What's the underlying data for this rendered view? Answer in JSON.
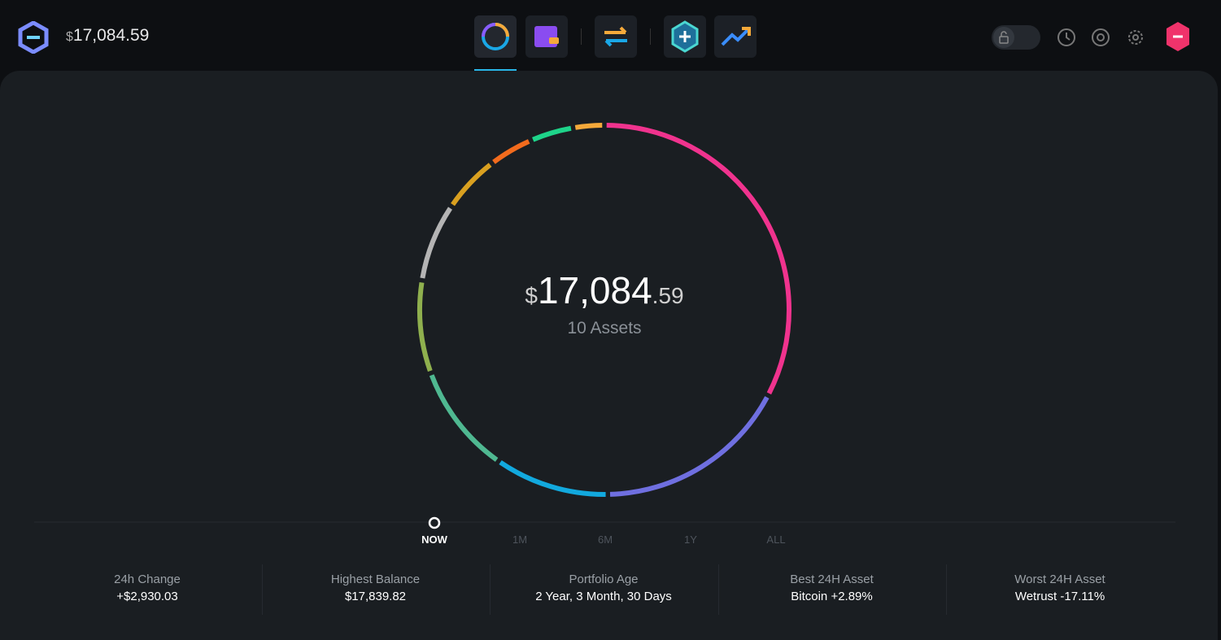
{
  "header": {
    "balance_currency": "$",
    "balance_amount": "17,084.59"
  },
  "portfolio": {
    "currency": "$",
    "whole": "17,084",
    "cents": ".59",
    "assets_label": "10 Assets",
    "segments": [
      {
        "color": "#f0338e",
        "value": 32.6
      },
      {
        "color": "#6f6fe0",
        "value": 17
      },
      {
        "color": "#12a9de",
        "value": 10
      },
      {
        "color": "#4fb891",
        "value": 9.7
      },
      {
        "color": "#8fb04e",
        "value": 8.1
      },
      {
        "color": "#b4b4b4",
        "value": 6.9
      },
      {
        "color": "#d9a020",
        "value": 5.1
      },
      {
        "color": "#f26b1d",
        "value": 3.9
      },
      {
        "color": "#1ed48a",
        "value": 3.8
      },
      {
        "color": "#f5a93a",
        "value": 2.7
      }
    ]
  },
  "timeline": [
    "NOW",
    "1M",
    "6M",
    "1Y",
    "ALL"
  ],
  "stats": [
    {
      "label": "24h Change",
      "value": "+$2,930.03"
    },
    {
      "label": "Highest Balance",
      "value": "$17,839.82"
    },
    {
      "label": "Portfolio Age",
      "value": "2 Year, 3 Month, 30 Days"
    },
    {
      "label": "Best 24H Asset",
      "value": "Bitcoin +2.89%"
    },
    {
      "label": "Worst 24H Asset",
      "value": "Wetrust -17.11%"
    }
  ]
}
